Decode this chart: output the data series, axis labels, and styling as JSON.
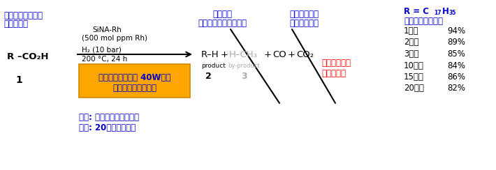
{
  "bg_color": "#ffffff",
  "blue": "#0000CC",
  "red": "#FF0000",
  "gray": "#aaaaaa",
  "black": "#000000",
  "orange_box_color": "#FFA500",
  "orange_edge_color": "#CC8800",
  "title_left1": "バイオマス由来の",
  "title_left2": "遂離脂肪酸",
  "catalyst": "SiNA-Rh",
  "catalyst2": "(500 mol ppm Rh)",
  "h2": "H₂ (10 bar)",
  "temp": "200 °C, 24 h",
  "microwave1": "マイクロ波照射　 40W程度",
  "microwave2": "（省エネルギー化）",
  "label1": "1",
  "reactant": "R –CO₂H",
  "second_gen_top": "第二世代",
  "second_gen_bot": "バイオディーゼル燃料",
  "co_label_top": "一酸化炭素は",
  "co_label_bot": "石油合成原料",
  "product_formula": "R–H",
  "product_label": "product",
  "product_num": "2",
  "plus1": "+",
  "byproduct_formula": "H–CH₃",
  "byproduct_label": "by-product",
  "byproduct_num": "3",
  "plus2": "+",
  "co_formula": "CO",
  "plus3": "+",
  "co2_formula": "CO₂",
  "no_co2_line1": "二酸化炭素は",
  "no_co2_line2": "生成しない",
  "r_header": "R = C",
  "r_sub": "17",
  "r_mid": "H",
  "r_sub2": "35",
  "r_note": "（ステアリン酸）",
  "recycling_data": [
    {
      "label": "1回目",
      "value": "94%"
    },
    {
      "label": "2回目",
      "value": "89%"
    },
    {
      "label": "3回目",
      "value": "85%"
    },
    {
      "label": "10回目",
      "value": "84%"
    },
    {
      "label": "15回目",
      "value": "86%"
    },
    {
      "label": "20回目",
      "value": "82%"
    }
  ],
  "bottom_text1": "水素: 再生可能エネルギー",
  "bottom_text2": "触媒: 20回再利用可能",
  "figw": 7.1,
  "figh": 2.44,
  "dpi": 100
}
